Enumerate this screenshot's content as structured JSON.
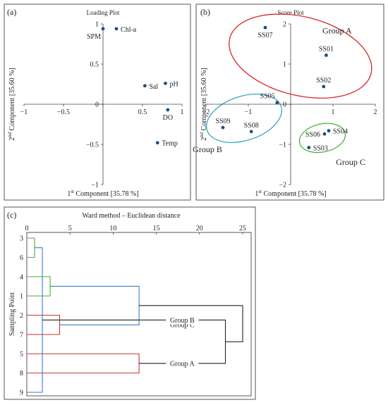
{
  "chart_data": [
    {
      "panel": "(a)",
      "type": "scatter",
      "title": "Loading Plot",
      "xlabel": "1st Component [35.78 %]",
      "ylabel": "2nd Component [35.60 %]",
      "xlim": [
        -1,
        1
      ],
      "ylim": [
        -1,
        1
      ],
      "xticks": [
        -1,
        -0.5,
        0,
        0.5,
        1
      ],
      "xtick_labels": [
        "−1",
        "−0.5",
        "0",
        "0.5",
        "1"
      ],
      "yticks": [
        1,
        0.5,
        0,
        -0.5,
        -1
      ],
      "ytick_labels": [
        "1",
        "0.5",
        "0",
        "−0.5",
        "−1"
      ],
      "points": [
        {
          "label": "SPM",
          "x": 0.0,
          "y": 0.94,
          "label_pos": "below-left"
        },
        {
          "label": "Chl-a",
          "x": 0.17,
          "y": 0.94,
          "label_pos": "right"
        },
        {
          "label": "Sal",
          "x": 0.53,
          "y": 0.23,
          "label_pos": "right"
        },
        {
          "label": "pH",
          "x": 0.79,
          "y": 0.26,
          "label_pos": "right"
        },
        {
          "label": "DO",
          "x": 0.82,
          "y": -0.07,
          "label_pos": "below"
        },
        {
          "label": "Temp",
          "x": 0.69,
          "y": -0.48,
          "label_pos": "right"
        }
      ]
    },
    {
      "panel": "(b)",
      "type": "scatter",
      "title": "Score Plot",
      "xlabel": "1st Component [35.78 %]",
      "ylabel": "2nd Component [35.60 %]",
      "xlim": [
        -2,
        2
      ],
      "ylim": [
        -2,
        2
      ],
      "xticks": [
        -2,
        -1,
        0,
        1,
        2
      ],
      "xtick_labels": [
        "−2",
        "−1",
        "0",
        "1",
        "2"
      ],
      "yticks": [
        2,
        1,
        0,
        -1,
        -2
      ],
      "ytick_labels": [
        "2",
        "1",
        "0",
        "−1",
        "−2"
      ],
      "points": [
        {
          "label": "SS07",
          "x": -0.6,
          "y": 1.91,
          "label_pos": "below"
        },
        {
          "label": "SS01",
          "x": 0.84,
          "y": 1.22,
          "label_pos": "above"
        },
        {
          "label": "SS02",
          "x": 0.78,
          "y": 0.44,
          "label_pos": "above"
        },
        {
          "label": "SS05",
          "x": -0.32,
          "y": 0.04,
          "label_pos": "above-left"
        },
        {
          "label": "SS09",
          "x": -1.6,
          "y": -0.58,
          "label_pos": "above"
        },
        {
          "label": "SS08",
          "x": -0.93,
          "y": -0.68,
          "label_pos": "above"
        },
        {
          "label": "SS06",
          "x": 0.8,
          "y": -0.74,
          "label_pos": "left"
        },
        {
          "label": "SS04",
          "x": 0.9,
          "y": -0.66,
          "label_pos": "right"
        },
        {
          "label": "SS03",
          "x": 0.43,
          "y": -1.08,
          "label_pos": "right"
        }
      ],
      "groups": [
        {
          "name": "Group A",
          "color": "#d62728",
          "cx": 0.23,
          "cy": 1.2,
          "rx": 1.72,
          "ry": 0.98,
          "rotate": 14
        },
        {
          "name": "Group B",
          "color": "#3aa6c2",
          "cx": -1.1,
          "cy": -0.35,
          "rx": 0.92,
          "ry": 0.55,
          "rotate": -18
        },
        {
          "name": "Group C",
          "color": "#4caf3c",
          "cx": 0.75,
          "cy": -0.84,
          "rx": 0.55,
          "ry": 0.35,
          "rotate": -12
        }
      ]
    },
    {
      "panel": "(c)",
      "type": "dendrogram",
      "title": "Ward method – Euclidean distance",
      "ylabel": "Sampling Point",
      "xlim": [
        0,
        25
      ],
      "xticks": [
        0,
        5,
        10,
        15,
        20,
        25
      ],
      "leaves": [
        "3",
        "6",
        "4",
        "1",
        "2",
        "7",
        "5",
        "8",
        "9"
      ],
      "clusters": [
        {
          "name": "Group C",
          "color": "#4caf3c"
        },
        {
          "name": "Group A",
          "color": "#c0392b"
        },
        {
          "name": "Group B",
          "color": "#3a7dc9"
        }
      ],
      "merges": [
        {
          "a": 0,
          "b": 1,
          "h": 0.9,
          "color": "#4caf3c"
        },
        {
          "a": 2,
          "b": 3,
          "h": 2.7,
          "color": "#4caf3c"
        },
        {
          "a": 4,
          "b": 5,
          "h": 3.8,
          "color": "#c0392b"
        },
        {
          "a": 6,
          "b": 7,
          "h": 13.0,
          "color": "#c0392b"
        },
        {
          "a": 8,
          "b": 9,
          "h": 1.8,
          "color": "#3a7dc9"
        },
        {
          "a": 10,
          "b": 11,
          "h": 13.0,
          "color": "#3a7dc9"
        },
        {
          "a": 12,
          "b": 13,
          "h": 23.0,
          "color": "#222222"
        },
        {
          "a": 14,
          "b": 15,
          "h": 25.0,
          "color": "#222222"
        }
      ]
    }
  ]
}
